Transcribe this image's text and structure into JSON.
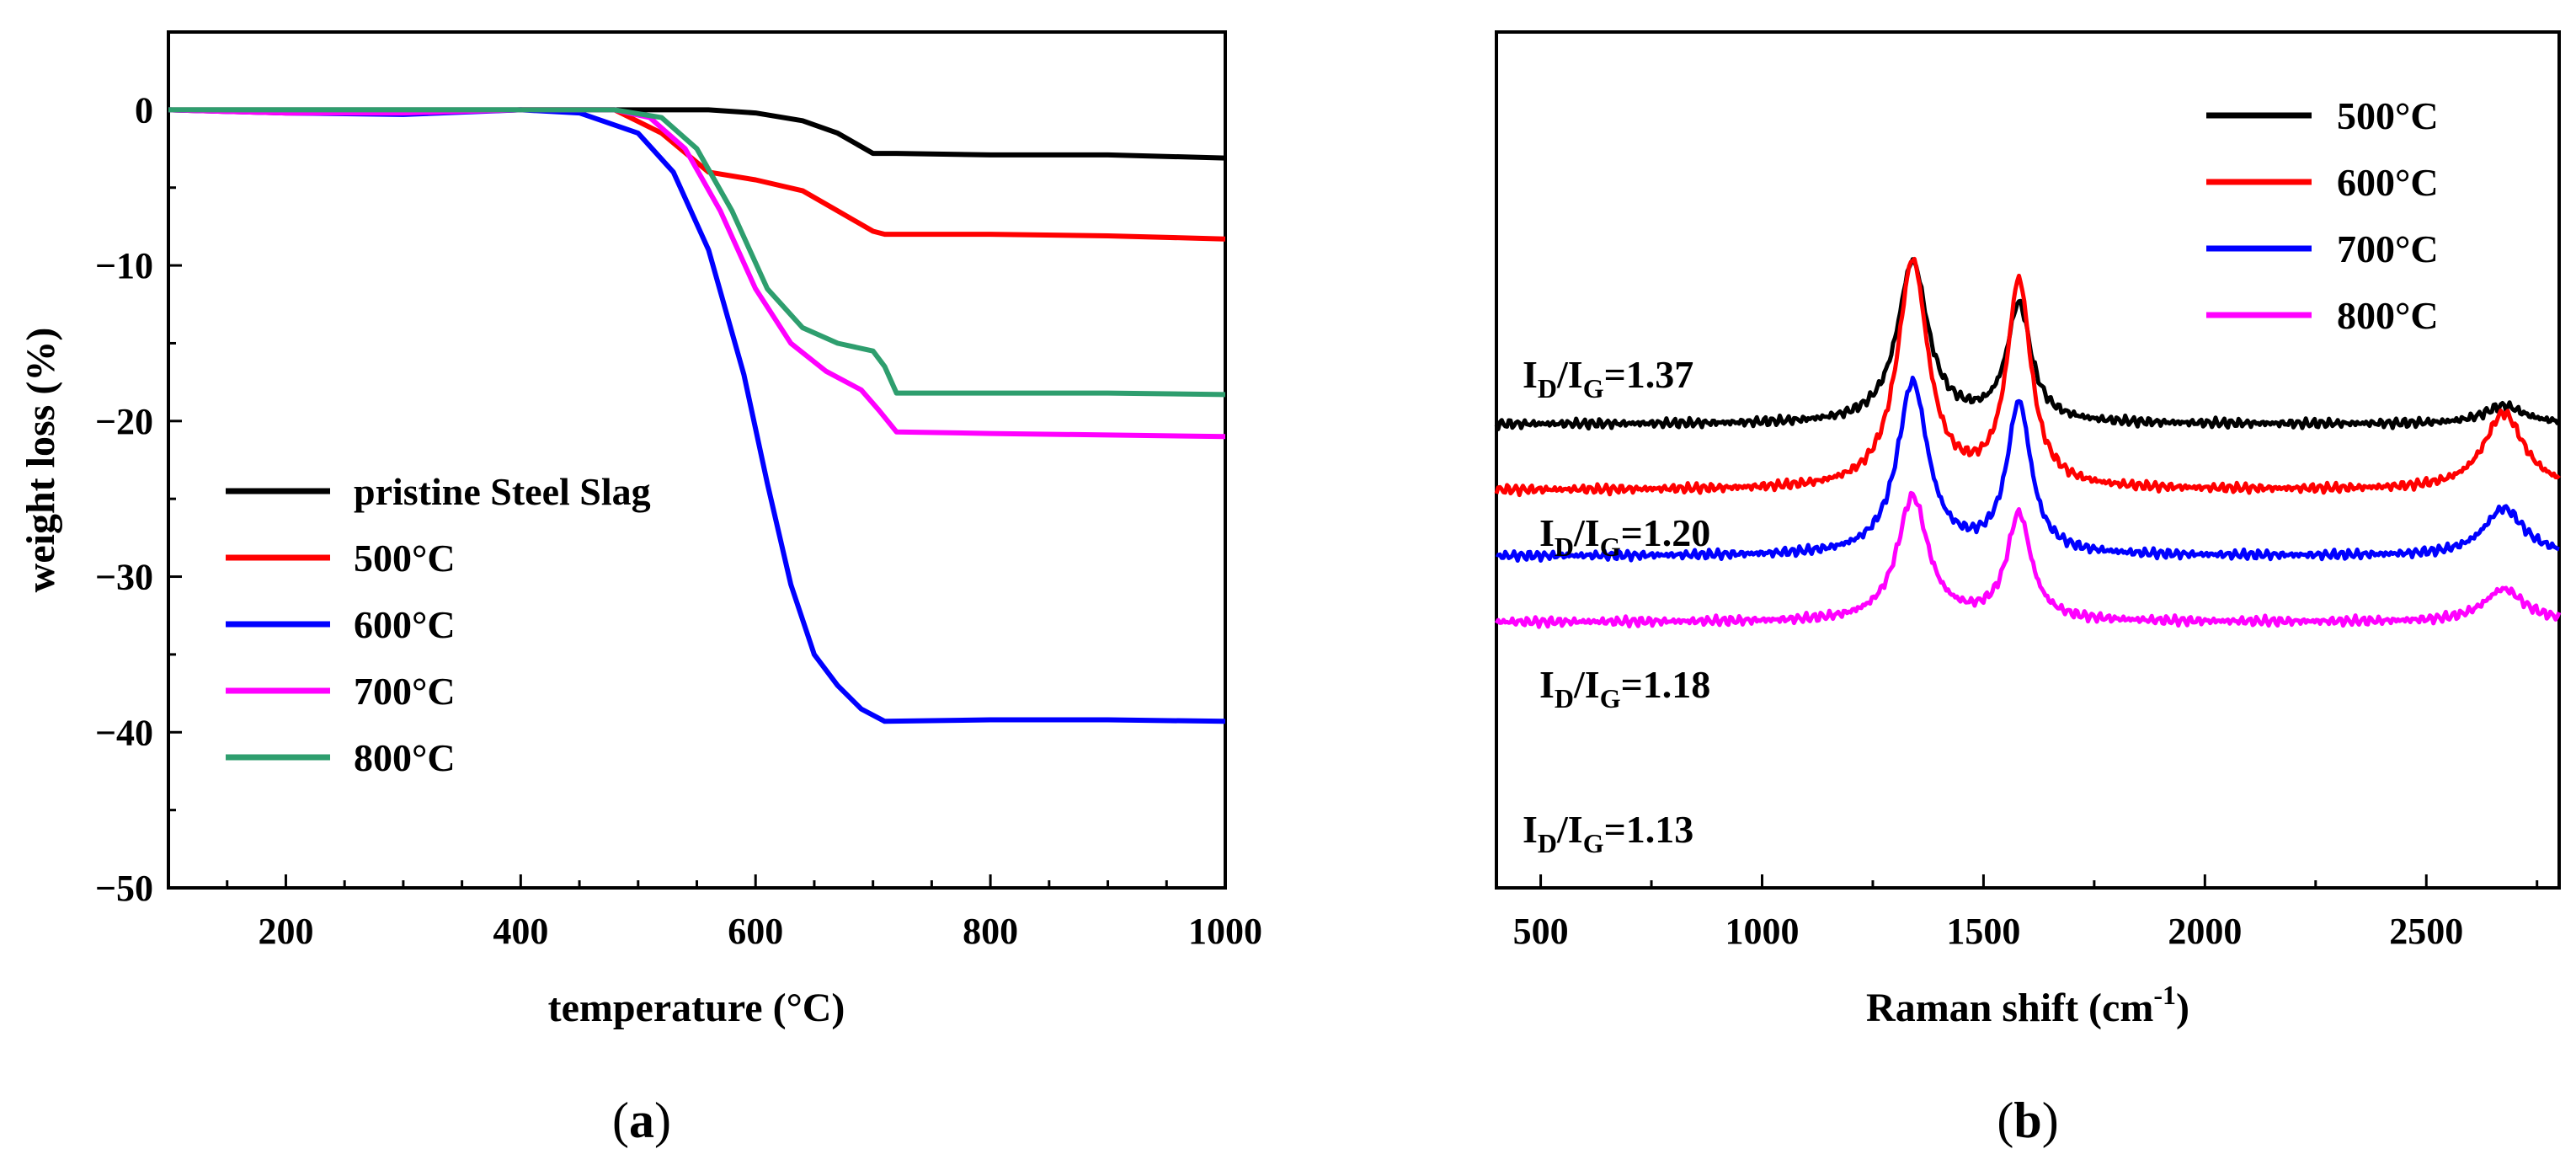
{
  "chart_data": [
    {
      "type": "line",
      "panel_label": "(a)",
      "panel_letter": "a",
      "xlabel": "temperature (°C)",
      "ylabel": "weight loss (%)",
      "xlim": [
        100,
        1000
      ],
      "ylim": [
        -50,
        5
      ],
      "xticks": [
        200,
        400,
        600,
        800,
        1000
      ],
      "yticks": [
        0,
        -10,
        -20,
        -30,
        -40,
        -50
      ],
      "xtick_labels": [
        "200",
        "400",
        "600",
        "800",
        "1000"
      ],
      "ytick_labels": [
        "0",
        "−10",
        "−20",
        "−30",
        "−40",
        "−50"
      ],
      "legend_position": "center-left",
      "series": [
        {
          "name": "pristine Steel Slag",
          "color": "#000000",
          "x": [
            100,
            200,
            300,
            400,
            500,
            560,
            600,
            640,
            670,
            700,
            720,
            800,
            900,
            1000
          ],
          "y": [
            0,
            0,
            0,
            0,
            0,
            0,
            -0.2,
            -0.7,
            -1.5,
            -2.8,
            -2.8,
            -2.9,
            -2.9,
            -3.1
          ]
        },
        {
          "name": "500°C",
          "color": "#ff0000",
          "x": [
            100,
            200,
            300,
            400,
            480,
            520,
            560,
            600,
            640,
            670,
            700,
            710,
            800,
            900,
            1000
          ],
          "y": [
            0,
            -0.2,
            -0.2,
            0,
            0,
            -1.5,
            -4,
            -4.5,
            -5.2,
            -6.5,
            -7.8,
            -8,
            -8,
            -8.1,
            -8.3
          ]
        },
        {
          "name": "600°C",
          "color": "#0000ff",
          "x": [
            100,
            200,
            300,
            400,
            450,
            500,
            530,
            560,
            590,
            610,
            630,
            650,
            670,
            690,
            710,
            800,
            900,
            1000
          ],
          "y": [
            0,
            -0.2,
            -0.3,
            0,
            -0.2,
            -1.5,
            -4,
            -9,
            -17,
            -24,
            -30.5,
            -35,
            -37,
            -38.5,
            -39.3,
            -39.2,
            -39.2,
            -39.3
          ]
        },
        {
          "name": "700°C",
          "color": "#ff00ff",
          "x": [
            100,
            200,
            300,
            400,
            480,
            510,
            540,
            570,
            600,
            630,
            660,
            690,
            705,
            720,
            800,
            900,
            1000
          ],
          "y": [
            0,
            -0.2,
            -0.2,
            0,
            0,
            -0.5,
            -2.5,
            -6.5,
            -11.5,
            -15,
            -16.8,
            -18,
            -19.3,
            -20.7,
            -20.8,
            -20.9,
            -21
          ]
        },
        {
          "name": "800°C",
          "color": "#2e9e6e",
          "x": [
            100,
            200,
            300,
            400,
            480,
            520,
            550,
            580,
            610,
            640,
            670,
            700,
            710,
            720,
            800,
            900,
            1000
          ],
          "y": [
            0,
            0,
            0,
            0,
            0,
            -0.5,
            -2.5,
            -6.5,
            -11.5,
            -14,
            -15,
            -15.5,
            -16.5,
            -18.2,
            -18.2,
            -18.2,
            -18.3
          ]
        }
      ]
    },
    {
      "type": "line",
      "panel_label": "(b)",
      "panel_letter": "b",
      "xlabel_main": "Raman shift (cm",
      "xlabel_sup": "-1",
      "xlabel_close": ")",
      "ylabel": "",
      "xlim": [
        400,
        2800
      ],
      "yaxis_ticks": "none",
      "xticks": [
        500,
        1000,
        1500,
        2000,
        2500
      ],
      "xtick_labels": [
        "500",
        "1000",
        "1500",
        "2000",
        "2500"
      ],
      "legend_position": "top-right",
      "series": [
        {
          "name": "500°C",
          "color": "#000000",
          "ratio_label": "=1.37",
          "ID_IG": 1.37,
          "baseline": 0.9,
          "d_peak": 2.2,
          "g_peak": 1.6,
          "two_d_peak": 0.25
        },
        {
          "name": "600°C",
          "color": "#ff0000",
          "ratio_label": "=1.20",
          "ID_IG": 1.2,
          "baseline": 0.0,
          "d_peak": 3.1,
          "g_peak": 2.8,
          "two_d_peak": 1.05
        },
        {
          "name": "700°C",
          "color": "#0000ff",
          "ratio_label": "=1.18",
          "ID_IG": 1.18,
          "baseline": -0.9,
          "d_peak": 2.35,
          "g_peak": 2.05,
          "two_d_peak": 0.65
        },
        {
          "name": "800°C",
          "color": "#ff00ff",
          "ratio_label": "=1.13",
          "ID_IG": 1.13,
          "baseline": -1.8,
          "d_peak": 1.7,
          "g_peak": 1.45,
          "two_d_peak": 0.45
        }
      ],
      "annotation_prefix": "I",
      "annotation_sub_d": "D",
      "annotation_sub_g": "G",
      "annotation_slash": "/"
    }
  ]
}
